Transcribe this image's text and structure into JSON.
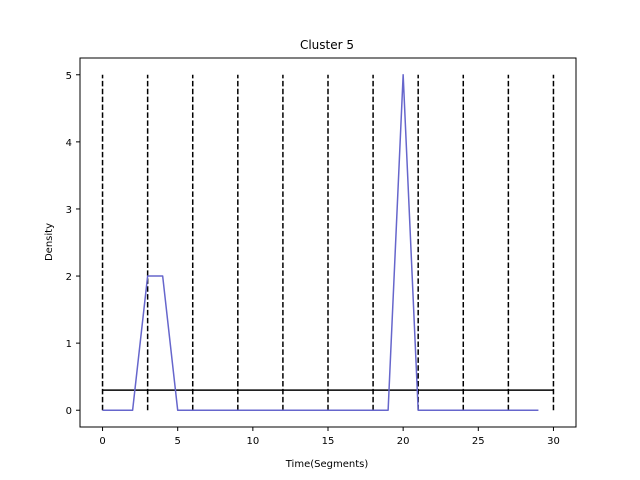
{
  "chart_data": {
    "type": "line",
    "title": "Cluster 5",
    "xlabel": "Time(Segments)",
    "ylabel": "Density",
    "xlim": [
      -1.5,
      31.5
    ],
    "ylim": [
      -0.25,
      5.25
    ],
    "xticks": [
      0,
      5,
      10,
      15,
      20,
      25,
      30
    ],
    "yticks": [
      0,
      1,
      2,
      3,
      4,
      5
    ],
    "grid": false,
    "series": [
      {
        "color": "#6666cc",
        "x": [
          0,
          1,
          2,
          3,
          4,
          5,
          6,
          7,
          8,
          9,
          10,
          11,
          12,
          13,
          14,
          15,
          16,
          17,
          18,
          19,
          20,
          21,
          22,
          23,
          24,
          25,
          26,
          27,
          28,
          29
        ],
        "y": [
          0,
          0,
          0,
          2,
          2,
          0,
          0,
          0,
          0,
          0,
          0,
          0,
          0,
          0,
          0,
          0,
          0,
          0,
          0,
          0,
          5,
          0,
          0,
          0,
          0,
          0,
          0,
          0,
          0,
          0
        ]
      }
    ],
    "vertical_dashed_lines": {
      "color": "#000000",
      "x": [
        0,
        3,
        6,
        9,
        12,
        15,
        18,
        21,
        24,
        27,
        30
      ],
      "y_range": [
        0,
        5
      ]
    },
    "horizontal_line": {
      "color": "#000000",
      "y": 0.3,
      "x_range": [
        0,
        30
      ]
    }
  }
}
